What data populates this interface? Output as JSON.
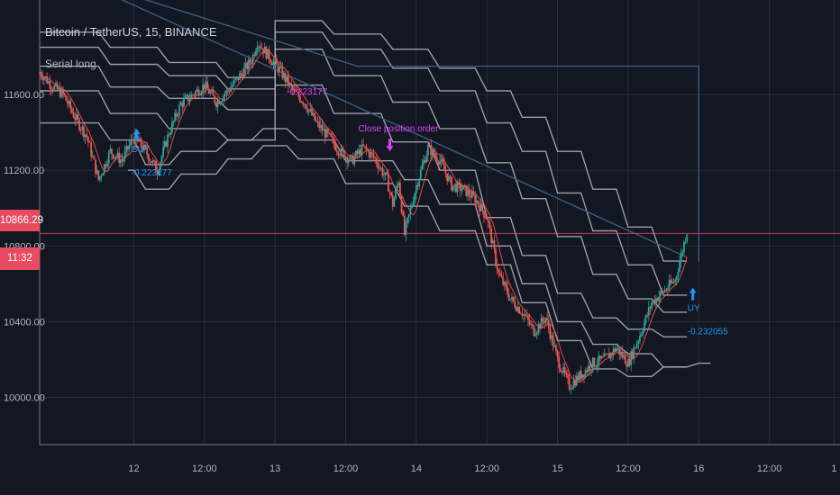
{
  "header": {
    "title": "Bitcoin / TetherUS, 15, BINANCE",
    "strategy": "Serial long"
  },
  "price_tag": {
    "price": "10866.29",
    "countdown": "11:32"
  },
  "colors": {
    "background": "#131722",
    "grid": "#2a2e39",
    "axis_text": "#b2b5be",
    "up": "#26a69a",
    "down": "#ef5350",
    "bands": "#b2b5be",
    "buy": "#2196f3",
    "close_order": "#e040fb",
    "price_line": "#e84a5f",
    "equity_line": "#3d5a80"
  },
  "chart_data": {
    "type": "candlestick",
    "y_ticks": [
      "11600.00",
      "11200.00",
      "10800.00",
      "10400.00",
      "10000.00"
    ],
    "y_tick_values": [
      11600,
      11200,
      10800,
      10400,
      10000
    ],
    "ylim": [
      9750,
      12100
    ],
    "x_ticks": [
      "12",
      "12:00",
      "13",
      "12:00",
      "14",
      "12:00",
      "15",
      "12:00",
      "16",
      "12:00",
      "1"
    ],
    "x_tick_times": [
      0,
      12,
      24,
      36,
      48,
      60,
      72,
      84,
      96,
      108,
      119
    ],
    "xlim": [
      -16,
      120
    ],
    "last_price": 10866.29,
    "close_path": [
      [
        -16,
        11720
      ],
      [
        -14,
        11650
      ],
      [
        -12,
        11600
      ],
      [
        -10,
        11480
      ],
      [
        -8,
        11380
      ],
      [
        -6,
        11150
      ],
      [
        -4,
        11300
      ],
      [
        -2,
        11250
      ],
      [
        0,
        11380
      ],
      [
        2,
        11300
      ],
      [
        4,
        11200
      ],
      [
        6,
        11400
      ],
      [
        8,
        11550
      ],
      [
        10,
        11600
      ],
      [
        12,
        11650
      ],
      [
        14,
        11560
      ],
      [
        16,
        11620
      ],
      [
        18,
        11700
      ],
      [
        20,
        11780
      ],
      [
        21,
        11880
      ],
      [
        23,
        11800
      ],
      [
        25,
        11720
      ],
      [
        27,
        11620
      ],
      [
        29,
        11560
      ],
      [
        31,
        11450
      ],
      [
        33,
        11380
      ],
      [
        35,
        11300
      ],
      [
        37,
        11250
      ],
      [
        39,
        11320
      ],
      [
        41,
        11260
      ],
      [
        43,
        11150
      ],
      [
        44,
        11020
      ],
      [
        45,
        11150
      ],
      [
        46,
        10860
      ],
      [
        48,
        11120
      ],
      [
        50,
        11320
      ],
      [
        52,
        11250
      ],
      [
        54,
        11120
      ],
      [
        56,
        11100
      ],
      [
        58,
        11050
      ],
      [
        60,
        10950
      ],
      [
        62,
        10650
      ],
      [
        64,
        10520
      ],
      [
        66,
        10450
      ],
      [
        68,
        10350
      ],
      [
        70,
        10420
      ],
      [
        72,
        10200
      ],
      [
        74,
        10060
      ],
      [
        76,
        10120
      ],
      [
        78,
        10180
      ],
      [
        80,
        10200
      ],
      [
        82,
        10260
      ],
      [
        84,
        10180
      ],
      [
        86,
        10330
      ],
      [
        88,
        10500
      ],
      [
        90,
        10560
      ],
      [
        92,
        10620
      ],
      [
        94,
        10880
      ]
    ],
    "bands": [
      [
        [
          -16,
          11930
        ],
        [
          -6,
          11930
        ],
        [
          -4,
          11850
        ],
        [
          4,
          11850
        ],
        [
          6,
          11770
        ],
        [
          14,
          11770
        ],
        [
          16,
          11690
        ],
        [
          24,
          11690
        ],
        [
          24,
          11990
        ],
        [
          32,
          11990
        ],
        [
          34,
          11920
        ],
        [
          42,
          11920
        ],
        [
          44,
          11840
        ],
        [
          50,
          11840
        ],
        [
          52,
          11740
        ],
        [
          58,
          11740
        ],
        [
          60,
          11620
        ],
        [
          64,
          11620
        ],
        [
          66,
          11480
        ],
        [
          70,
          11480
        ],
        [
          72,
          11300
        ],
        [
          76,
          11300
        ],
        [
          78,
          11100
        ],
        [
          82,
          11100
        ],
        [
          84,
          10900
        ],
        [
          88,
          10900
        ],
        [
          90,
          10720
        ],
        [
          94,
          10720
        ]
      ],
      [
        [
          -16,
          11850
        ],
        [
          -6,
          11850
        ],
        [
          -4,
          11760
        ],
        [
          4,
          11760
        ],
        [
          6,
          11700
        ],
        [
          14,
          11700
        ],
        [
          16,
          11630
        ],
        [
          24,
          11630
        ],
        [
          24,
          11930
        ],
        [
          32,
          11930
        ],
        [
          34,
          11840
        ],
        [
          42,
          11840
        ],
        [
          44,
          11740
        ],
        [
          50,
          11740
        ],
        [
          52,
          11620
        ],
        [
          58,
          11620
        ],
        [
          60,
          11450
        ],
        [
          64,
          11450
        ],
        [
          66,
          11300
        ],
        [
          70,
          11300
        ],
        [
          72,
          11080
        ],
        [
          76,
          11080
        ],
        [
          78,
          10880
        ],
        [
          82,
          10880
        ],
        [
          84,
          10700
        ],
        [
          88,
          10700
        ],
        [
          90,
          10540
        ],
        [
          94,
          10540
        ]
      ],
      [
        [
          -16,
          11750
        ],
        [
          -6,
          11750
        ],
        [
          -4,
          11640
        ],
        [
          4,
          11640
        ],
        [
          6,
          11580
        ],
        [
          14,
          11580
        ],
        [
          16,
          11520
        ],
        [
          24,
          11520
        ],
        [
          24,
          11840
        ],
        [
          32,
          11840
        ],
        [
          34,
          11700
        ],
        [
          42,
          11700
        ],
        [
          44,
          11560
        ],
        [
          50,
          11560
        ],
        [
          52,
          11420
        ],
        [
          58,
          11420
        ],
        [
          60,
          11240
        ],
        [
          64,
          11240
        ],
        [
          66,
          11050
        ],
        [
          70,
          11050
        ],
        [
          72,
          10850
        ],
        [
          76,
          10850
        ],
        [
          78,
          10650
        ],
        [
          82,
          10650
        ],
        [
          84,
          10520
        ],
        [
          88,
          10520
        ],
        [
          90,
          10450
        ],
        [
          94,
          10450
        ]
      ],
      [
        [
          -16,
          11620
        ],
        [
          -6,
          11620
        ],
        [
          -4,
          11500
        ],
        [
          4,
          11500
        ],
        [
          6,
          11420
        ],
        [
          14,
          11420
        ],
        [
          16,
          11360
        ],
        [
          24,
          11360
        ],
        [
          24,
          11650
        ],
        [
          32,
          11650
        ],
        [
          34,
          11500
        ],
        [
          42,
          11500
        ],
        [
          44,
          11350
        ],
        [
          50,
          11350
        ],
        [
          52,
          11200
        ],
        [
          58,
          11200
        ],
        [
          60,
          10950
        ],
        [
          64,
          10950
        ],
        [
          66,
          10750
        ],
        [
          70,
          10750
        ],
        [
          72,
          10550
        ],
        [
          76,
          10550
        ],
        [
          78,
          10420
        ],
        [
          82,
          10420
        ],
        [
          84,
          10360
        ],
        [
          88,
          10360
        ],
        [
          90,
          10320
        ],
        [
          94,
          10320
        ]
      ],
      [
        [
          -16,
          11450
        ],
        [
          -6,
          11450
        ],
        [
          -4,
          11360
        ],
        [
          0,
          11360
        ],
        [
          2,
          11230
        ],
        [
          6,
          11230
        ],
        [
          8,
          11300
        ],
        [
          14,
          11300
        ],
        [
          16,
          11360
        ],
        [
          20,
          11360
        ],
        [
          22,
          11420
        ],
        [
          26,
          11420
        ],
        [
          28,
          11360
        ],
        [
          34,
          11360
        ],
        [
          36,
          11250
        ],
        [
          44,
          11250
        ],
        [
          46,
          11150
        ],
        [
          50,
          11150
        ],
        [
          52,
          11020
        ],
        [
          58,
          11020
        ],
        [
          60,
          10800
        ],
        [
          64,
          10800
        ],
        [
          66,
          10600
        ],
        [
          70,
          10600
        ],
        [
          72,
          10400
        ],
        [
          76,
          10400
        ],
        [
          78,
          10280
        ],
        [
          82,
          10280
        ],
        [
          84,
          10230
        ],
        [
          88,
          10230
        ],
        [
          90,
          10160
        ],
        [
          94,
          10160
        ]
      ],
      [
        [
          -1,
          11200
        ],
        [
          0,
          11200
        ],
        [
          2,
          11100
        ],
        [
          6,
          11100
        ],
        [
          8,
          11180
        ],
        [
          14,
          11180
        ],
        [
          16,
          11260
        ],
        [
          20,
          11260
        ],
        [
          22,
          11330
        ],
        [
          26,
          11330
        ],
        [
          28,
          11260
        ],
        [
          34,
          11260
        ],
        [
          36,
          11130
        ],
        [
          44,
          11130
        ],
        [
          46,
          11010
        ],
        [
          50,
          11010
        ],
        [
          52,
          10880
        ],
        [
          58,
          10880
        ],
        [
          60,
          10700
        ],
        [
          64,
          10700
        ],
        [
          66,
          10500
        ],
        [
          70,
          10500
        ],
        [
          72,
          10300
        ],
        [
          76,
          10300
        ],
        [
          78,
          10150
        ],
        [
          82,
          10150
        ],
        [
          84,
          10110
        ],
        [
          88,
          10110
        ],
        [
          90,
          10160
        ],
        [
          94,
          10160
        ],
        [
          96,
          10180
        ],
        [
          98,
          10180
        ]
      ]
    ],
    "equity_line": [
      [
        -3,
        12150
      ],
      [
        38,
        11750
      ],
      [
        96,
        11750
      ],
      [
        96,
        10720
      ]
    ],
    "diag_line": [
      [
        -16,
        12300
      ],
      [
        94,
        10740
      ]
    ],
    "annotations": [
      {
        "time": 0.5,
        "price": 11420,
        "labels": [
          "BUY",
          "-0.223177"
        ],
        "color": "#2196f3",
        "dir": "up"
      },
      {
        "time": 43.5,
        "price": 11300,
        "labels": [
          "Close position order"
        ],
        "color": "#e040fb",
        "dir": "down",
        "label_above": true
      },
      {
        "time": 26,
        "price": 11600,
        "labels": [
          "-0.223177"
        ],
        "color": "#e040fb",
        "dir": "none"
      },
      {
        "time": 95,
        "price": 10580,
        "labels": [
          "UY",
          "-0.232055"
        ],
        "color": "#2196f3",
        "dir": "up"
      }
    ]
  }
}
